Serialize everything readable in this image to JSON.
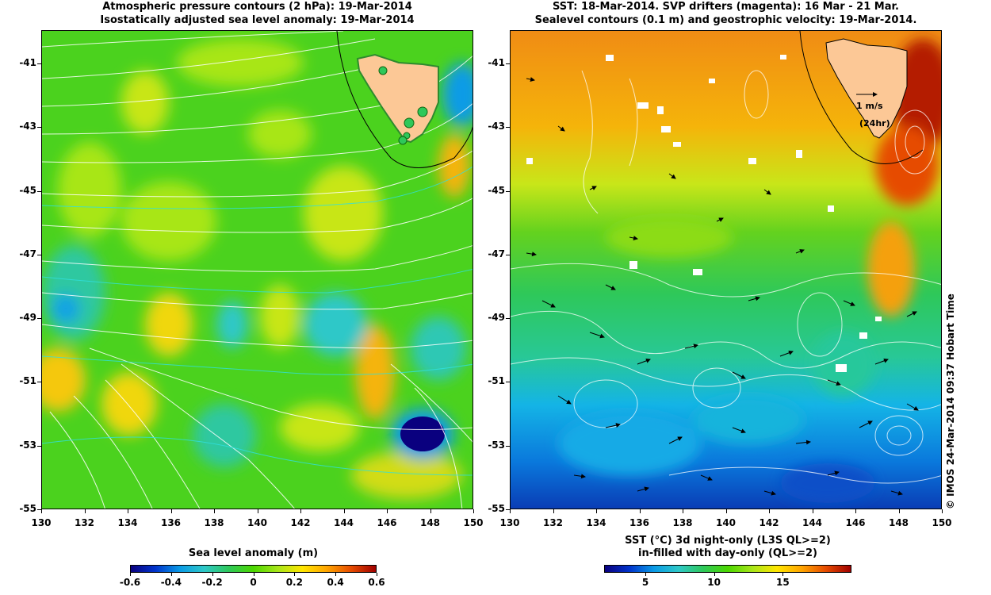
{
  "left_panel": {
    "title_line1": "Atmospheric pressure contours (2 hPa): 19-Mar-2014",
    "title_line2": "Isostatically adjusted sea level anomaly: 19-Mar-2014",
    "colorbar_title": "Sea level anomaly (m)",
    "colorbar_ticks": [
      "-0.6",
      "-0.4",
      "-0.2",
      "0",
      "0.2",
      "0.4",
      "0.6"
    ],
    "colorbar_colors": [
      "#0a007f",
      "#0033cc",
      "#0a9be6",
      "#2ec8c8",
      "#2ec85a",
      "#4bd700",
      "#a8e619",
      "#ffe600",
      "#ffa500",
      "#e64b00",
      "#a00000"
    ]
  },
  "right_panel": {
    "title_line1": "SST: 18-Mar-2014. SVP drifters (magenta): 16 Mar - 21 Mar.",
    "title_line2": "Sealevel contours (0.1 m) and geostrophic velocity: 19-Mar-2014.",
    "colorbar_title_line1": "SST (°C) 3d night-only (L3S QL>=2)",
    "colorbar_title_line2": "in-filled with day-only (QL>=2)",
    "colorbar_ticks": [
      "5",
      "10",
      "15"
    ],
    "colorbar_colors": [
      "#0a007f",
      "#0033cc",
      "#0a9be6",
      "#2ec8c8",
      "#2ec85a",
      "#4bd700",
      "#a8e619",
      "#ffe600",
      "#ffa500",
      "#e64b00",
      "#a00000"
    ],
    "velocity_scale_label": "1 m/s",
    "velocity_scale_note": "(24hr)"
  },
  "axes": {
    "lat_ticks": [
      "-41",
      "-43",
      "-45",
      "-47",
      "-49",
      "-51",
      "-53",
      "-55"
    ],
    "lon_ticks": [
      "130",
      "132",
      "134",
      "136",
      "138",
      "140",
      "142",
      "144",
      "146",
      "148",
      "150"
    ]
  },
  "credit": "© IMOS 24-Mar-2014 09:37 Hobart Time"
}
